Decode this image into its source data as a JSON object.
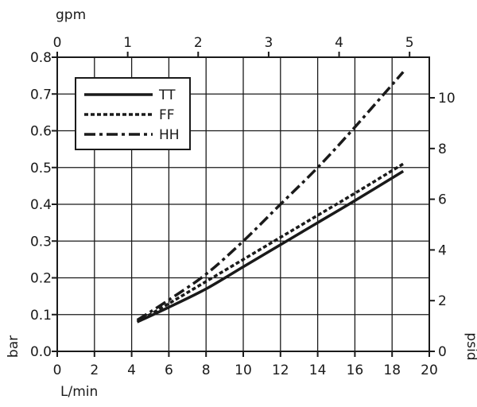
{
  "chart_data": {
    "type": "line",
    "x_axis": {
      "label": "L/min",
      "range": [
        0,
        20
      ],
      "ticks": [
        0,
        2,
        4,
        6,
        8,
        10,
        12,
        14,
        16,
        18,
        20
      ]
    },
    "x2_axis": {
      "label": "gpm",
      "range": [
        0,
        5.28
      ],
      "ticks": [
        0,
        1,
        2,
        3,
        4,
        5
      ]
    },
    "y_axis": {
      "label": "bar",
      "range": [
        0,
        0.8
      ],
      "ticks": [
        0.0,
        0.1,
        0.2,
        0.3,
        0.4,
        0.5,
        0.6,
        0.7,
        0.8
      ]
    },
    "y2_axis": {
      "label": "psid",
      "range": [
        0,
        11.6
      ],
      "ticks": [
        0,
        2,
        4,
        6,
        8,
        10
      ]
    },
    "grid": true,
    "legend_position": "top-left",
    "series": [
      {
        "name": "TT",
        "style": "solid",
        "x": [
          4.3,
          6,
          8,
          10,
          12,
          14,
          16,
          18.6
        ],
        "y": [
          0.08,
          0.12,
          0.17,
          0.23,
          0.29,
          0.35,
          0.41,
          0.49
        ]
      },
      {
        "name": "FF",
        "style": "dotted",
        "x": [
          4.3,
          6,
          8,
          10,
          12,
          14,
          16,
          18.6
        ],
        "y": [
          0.08,
          0.13,
          0.19,
          0.25,
          0.31,
          0.37,
          0.43,
          0.51
        ]
      },
      {
        "name": "HH",
        "style": "dash-dot",
        "x": [
          4.3,
          6,
          8,
          10,
          12,
          14,
          16,
          18.6
        ],
        "y": [
          0.085,
          0.14,
          0.21,
          0.3,
          0.4,
          0.5,
          0.61,
          0.76
        ]
      }
    ]
  }
}
